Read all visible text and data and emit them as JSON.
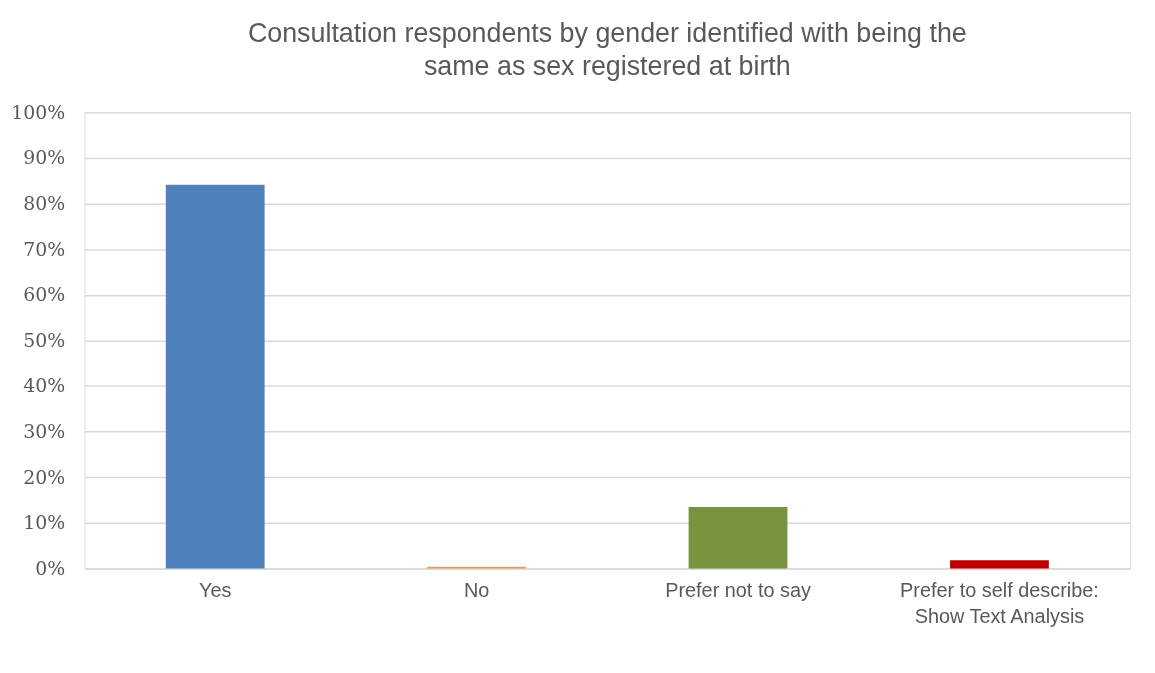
{
  "chart_data": {
    "type": "bar",
    "title": "Consultation respondents by gender identified with being the same as sex registered at birth",
    "categories": [
      "Yes",
      "No",
      "Prefer not to say",
      "Prefer to self describe: Show Text Analysis"
    ],
    "values": [
      84.1,
      0.4,
      13.5,
      1.8
    ],
    "colors": [
      "#4f81bd",
      "#f79646",
      "#77933c",
      "#c00000"
    ],
    "ylim": [
      0,
      100
    ],
    "yticks": [
      {
        "value": 0,
        "label": "0%"
      },
      {
        "value": 10,
        "label": "10%"
      },
      {
        "value": 20,
        "label": "20%"
      },
      {
        "value": 30,
        "label": "30%"
      },
      {
        "value": 40,
        "label": "40%"
      },
      {
        "value": 50,
        "label": "50%"
      },
      {
        "value": 60,
        "label": "60%"
      },
      {
        "value": 70,
        "label": "70%"
      },
      {
        "value": 80,
        "label": "80%"
      },
      {
        "value": 90,
        "label": "90%"
      },
      {
        "value": 100,
        "label": "100%"
      }
    ],
    "grid": "y"
  }
}
